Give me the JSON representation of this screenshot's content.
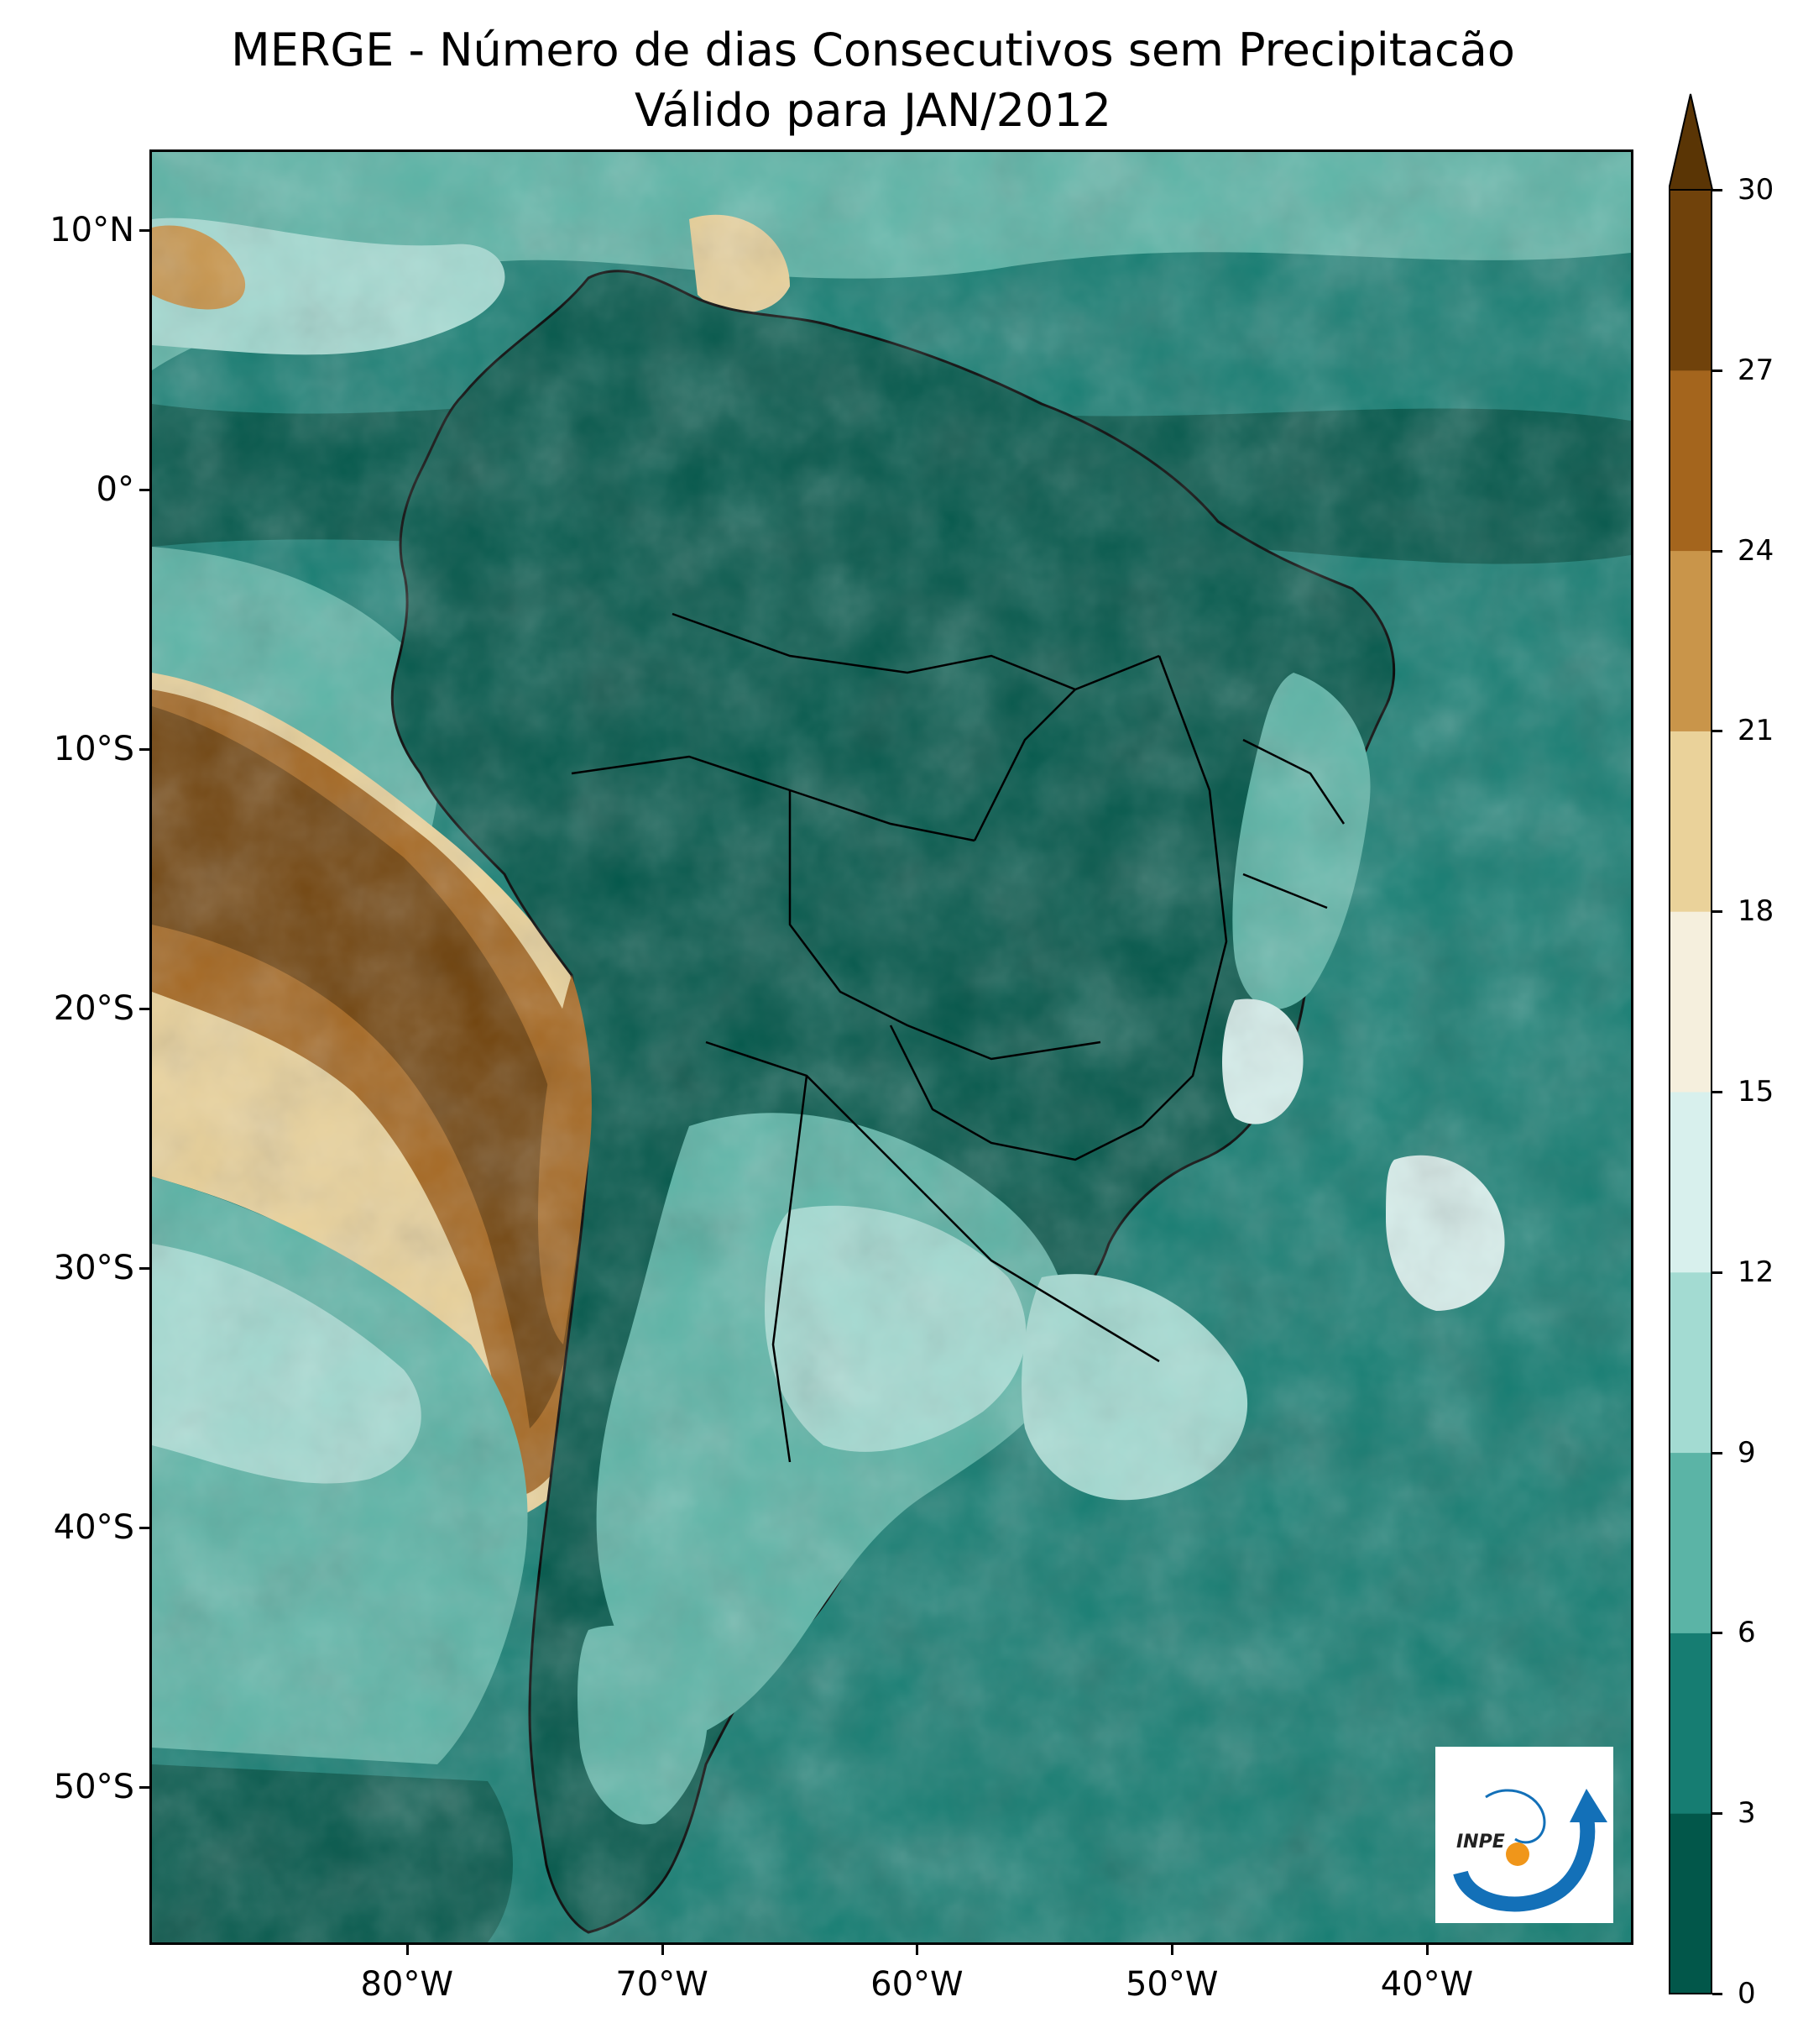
{
  "title": {
    "line1": "MERGE - Número de dias Consecutivos sem Precipitacão",
    "line2": "Válido para JAN/2012"
  },
  "map": {
    "region": "South America",
    "lat_range": [
      -56,
      13
    ],
    "lon_range": [
      -90,
      -32
    ],
    "lat_ticks": [
      {
        "value": 10,
        "label": "10°N"
      },
      {
        "value": 0,
        "label": "0°"
      },
      {
        "value": -10,
        "label": "10°S"
      },
      {
        "value": -20,
        "label": "20°S"
      },
      {
        "value": -30,
        "label": "30°S"
      },
      {
        "value": -40,
        "label": "40°S"
      },
      {
        "value": -50,
        "label": "50°S"
      }
    ],
    "lon_ticks": [
      {
        "value": -80,
        "label": "80°W"
      },
      {
        "value": -70,
        "label": "70°W"
      },
      {
        "value": -60,
        "label": "60°W"
      },
      {
        "value": -50,
        "label": "50°W"
      },
      {
        "value": -40,
        "label": "40°W"
      }
    ]
  },
  "colorbar": {
    "ticks": [
      "0",
      "3",
      "6",
      "9",
      "12",
      "15",
      "18",
      "21",
      "24",
      "27",
      "30"
    ],
    "colors": [
      "#02574a",
      "#167d72",
      "#5bb4a6",
      "#a3dbd2",
      "#d8f0ed",
      "#f5efdd",
      "#ead29a",
      "#c9954a",
      "#a4651d",
      "#70420b"
    ],
    "extend_color": "#5a3505",
    "extend": "max"
  },
  "logo": {
    "text": "INPE",
    "colors": {
      "blue": "#1370b8",
      "orange": "#f0961a"
    }
  }
}
